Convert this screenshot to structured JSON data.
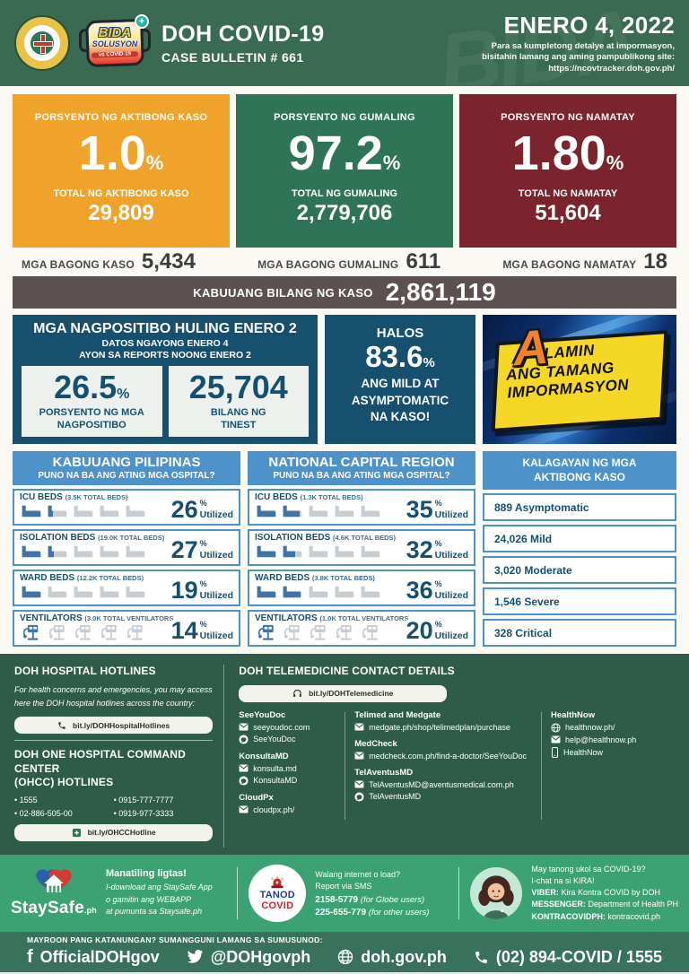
{
  "colors": {
    "header_green": "#3A6A52",
    "card_orange": "#F0A32B",
    "card_green": "#2F7457",
    "card_maroon": "#7B242D",
    "total_bar": "#5C5150",
    "navy": "#17506F",
    "blue": "#4D92C8",
    "footer_green": "#2E5C49",
    "staysafe_green": "#3CA273"
  },
  "units": {
    "percent_sign": "%"
  },
  "header": {
    "title": "DOH COVID-19",
    "subtitle": "CASE BULLETIN # 661",
    "date": "ENERO 4, 2022",
    "note1": "Para sa kumpletong detalye at impormasyon,",
    "note2": "bisitahin lamang ang aming pampublikong site:",
    "note3": "https://ncovtracker.doh.gov.ph/",
    "watermark": "BIDA",
    "bida_line1": "BIDA",
    "bida_line2": "SOLUSYON",
    "bida_line3": "vs COVID-19",
    "bida_plus": "+"
  },
  "cards": [
    {
      "label": "PORSYENTO NG AKTIBONG KASO",
      "percent": "1.0",
      "total_label": "TOTAL NG AKTIBONG KASO",
      "total": "29,809",
      "bg": "#F0A32B"
    },
    {
      "label": "PORSYENTO NG GUMALING",
      "percent": "97.2",
      "total_label": "TOTAL NG GUMALING",
      "total": "2,779,706",
      "bg": "#2F7457"
    },
    {
      "label": "PORSYENTO NG NAMATAY",
      "percent": "1.80",
      "total_label": "TOTAL NG NAMATAY",
      "total": "51,604",
      "bg": "#7B242D"
    }
  ],
  "new_cases": [
    {
      "label": "MGA BAGONG KASO",
      "value": "5,434"
    },
    {
      "label": "MGA BAGONG GUMALING",
      "value": "611"
    },
    {
      "label": "MGA BAGONG NAMATAY",
      "value": "18"
    }
  ],
  "total_bar": {
    "label": "KABUUANG BILANG NG KASO",
    "value": "2,861,119"
  },
  "positivity": {
    "title": "MGA NAGPOSITIBO HULING ENERO 2",
    "sub1": "DATOS NGAYONG ENERO 4",
    "sub2": "AYON SA REPORTS NOONG ENERO 2",
    "percent": "26.5",
    "percent_label1": "PORSYENTO NG MGA",
    "percent_label2": "NAGPOSITIBO",
    "tested": "25,704",
    "tested_label1": "BILANG NG",
    "tested_label2": "TINEST"
  },
  "mild": {
    "line1": "HALOS",
    "percent": "83.6",
    "rest1": "ANG MILD AT",
    "rest2": "ASYMPTOMATIC",
    "rest3": "NA KASO!"
  },
  "alamin": {
    "big_a": "A",
    "line1": "LAMIN",
    "line2": "ANG TAMANG",
    "line3": "IMPORMASYON"
  },
  "hospitals": {
    "utilized": "Utilized",
    "columns": [
      {
        "title": "KABUUANG PILIPINAS",
        "subtitle": "PUNO NA BA ANG ATING MGA OSPITAL?",
        "rows": [
          {
            "label": "ICU BEDS",
            "capacity": "(3.5K TOTAL BEDS)",
            "percent": 26
          },
          {
            "label": "ISOLATION BEDS",
            "capacity": "(19.0K TOTAL BEDS)",
            "percent": 27
          },
          {
            "label": "WARD BEDS",
            "capacity": "(12.2K TOTAL BEDS)",
            "percent": 19
          },
          {
            "label": "VENTILATORS",
            "capacity": "(3.0K TOTAL VENTILATORS)",
            "percent": 14
          }
        ]
      },
      {
        "title": "NATIONAL CAPITAL REGION",
        "subtitle": "PUNO NA BA ANG ATING MGA OSPITAL?",
        "rows": [
          {
            "label": "ICU BEDS",
            "capacity": "(1.3K TOTAL BEDS)",
            "percent": 35
          },
          {
            "label": "ISOLATION BEDS",
            "capacity": "(4.6K TOTAL BEDS)",
            "percent": 32
          },
          {
            "label": "WARD BEDS",
            "capacity": "(3.8K TOTAL BEDS)",
            "percent": 36
          },
          {
            "label": "VENTILATORS",
            "capacity": "(1.0K TOTAL VENTILATORS)",
            "percent": 20
          }
        ]
      }
    ]
  },
  "status": {
    "title1": "KALAGAYAN NG MGA",
    "title2": "AKTIBONG KASO",
    "items": [
      "889 Asymptomatic",
      "24,026 Mild",
      "3,020 Moderate",
      "1,546 Severe",
      "328 Critical"
    ]
  },
  "hotlines": {
    "title": "DOH HOSPITAL HOTLINES",
    "desc1": "For health concerns and emergencies, you may access",
    "desc2": "here the DOH hospital hotlines across the country:",
    "link1": "bit.ly/DOHHospitalHotlines",
    "ohcc1": "DOH ONE HOSPITAL COMMAND CENTER",
    "ohcc2": "(OHCC) HOTLINES",
    "numbers": [
      "1555",
      "0915-777-7777",
      "02-886-505-00",
      "0919-977-3333"
    ],
    "link2": "bit.ly/OHCCHotline"
  },
  "tele": {
    "title": "DOH TELEMEDICINE CONTACT DETAILS",
    "link": "bit.ly/DOHTelemedicine",
    "s1": {
      "name": "SeeYouDoc",
      "mail": "seeyoudoc.com",
      "chat": "SeeYouDoc"
    },
    "s2": {
      "name": "KonsultaMD",
      "mail": "konsulta.md",
      "chat": "KonsultaMD"
    },
    "s3": {
      "name": "CloudPx",
      "mail": "cloudpx.ph/"
    },
    "s4": {
      "name": "Telimed and Medgate",
      "mail": "medgate.ph/shop/telimedplan/purchase"
    },
    "s5": {
      "name": "MedCheck",
      "mail": "medcheck.com.ph/find-a-doctor/SeeYouDoc"
    },
    "s6": {
      "name": "TelAventusMD",
      "mail": "TelAventusMD@aventusmedical.com.ph",
      "chat": "TelAventusMD"
    },
    "s7": {
      "name": "HealthNow",
      "web": "healthnow.ph/",
      "mail": "help@healthnow.ph",
      "app": "HealthNow"
    }
  },
  "staysafe": {
    "brand": "StaySafe",
    "brand_suffix": ".ph",
    "bold": "Manatiling ligtas!",
    "line1": "I-download ang StaySafe App",
    "line2": "o gamitin ang WEBAPP",
    "line3": "at pumunta sa Staysafe.ph"
  },
  "tanod": {
    "logo_top": "TANOD",
    "logo_bottom": "COVID",
    "q1": "Walang internet o load?",
    "q2": "Report via SMS",
    "sms1": "2158-5779",
    "sms1_note": "(for Globe users)",
    "sms2": "225-655-779",
    "sms2_note": "(for other users)"
  },
  "kira": {
    "q1": "May tanong ukol sa COVID-19?",
    "q2": "I-chat na si KIRA!",
    "viber_label": "VIBER:",
    "viber": "Kira Kontra COVID by DOH",
    "messenger_label": "MESSENGER:",
    "messenger": "Department of Health PH",
    "kontra_label": "KONTRACOVIDPH:",
    "kontra": "kontracovid.ph"
  },
  "bottom": {
    "note": "MAYROON PANG KATANUNGAN? SUMANGGUNI LAMANG SA SUMUSUNOD:",
    "facebook": "OfficialDOHgov",
    "twitter": "@DOHgovph",
    "site": "doh.gov.ph",
    "phone": "(02) 894-COVID  /  1555"
  }
}
